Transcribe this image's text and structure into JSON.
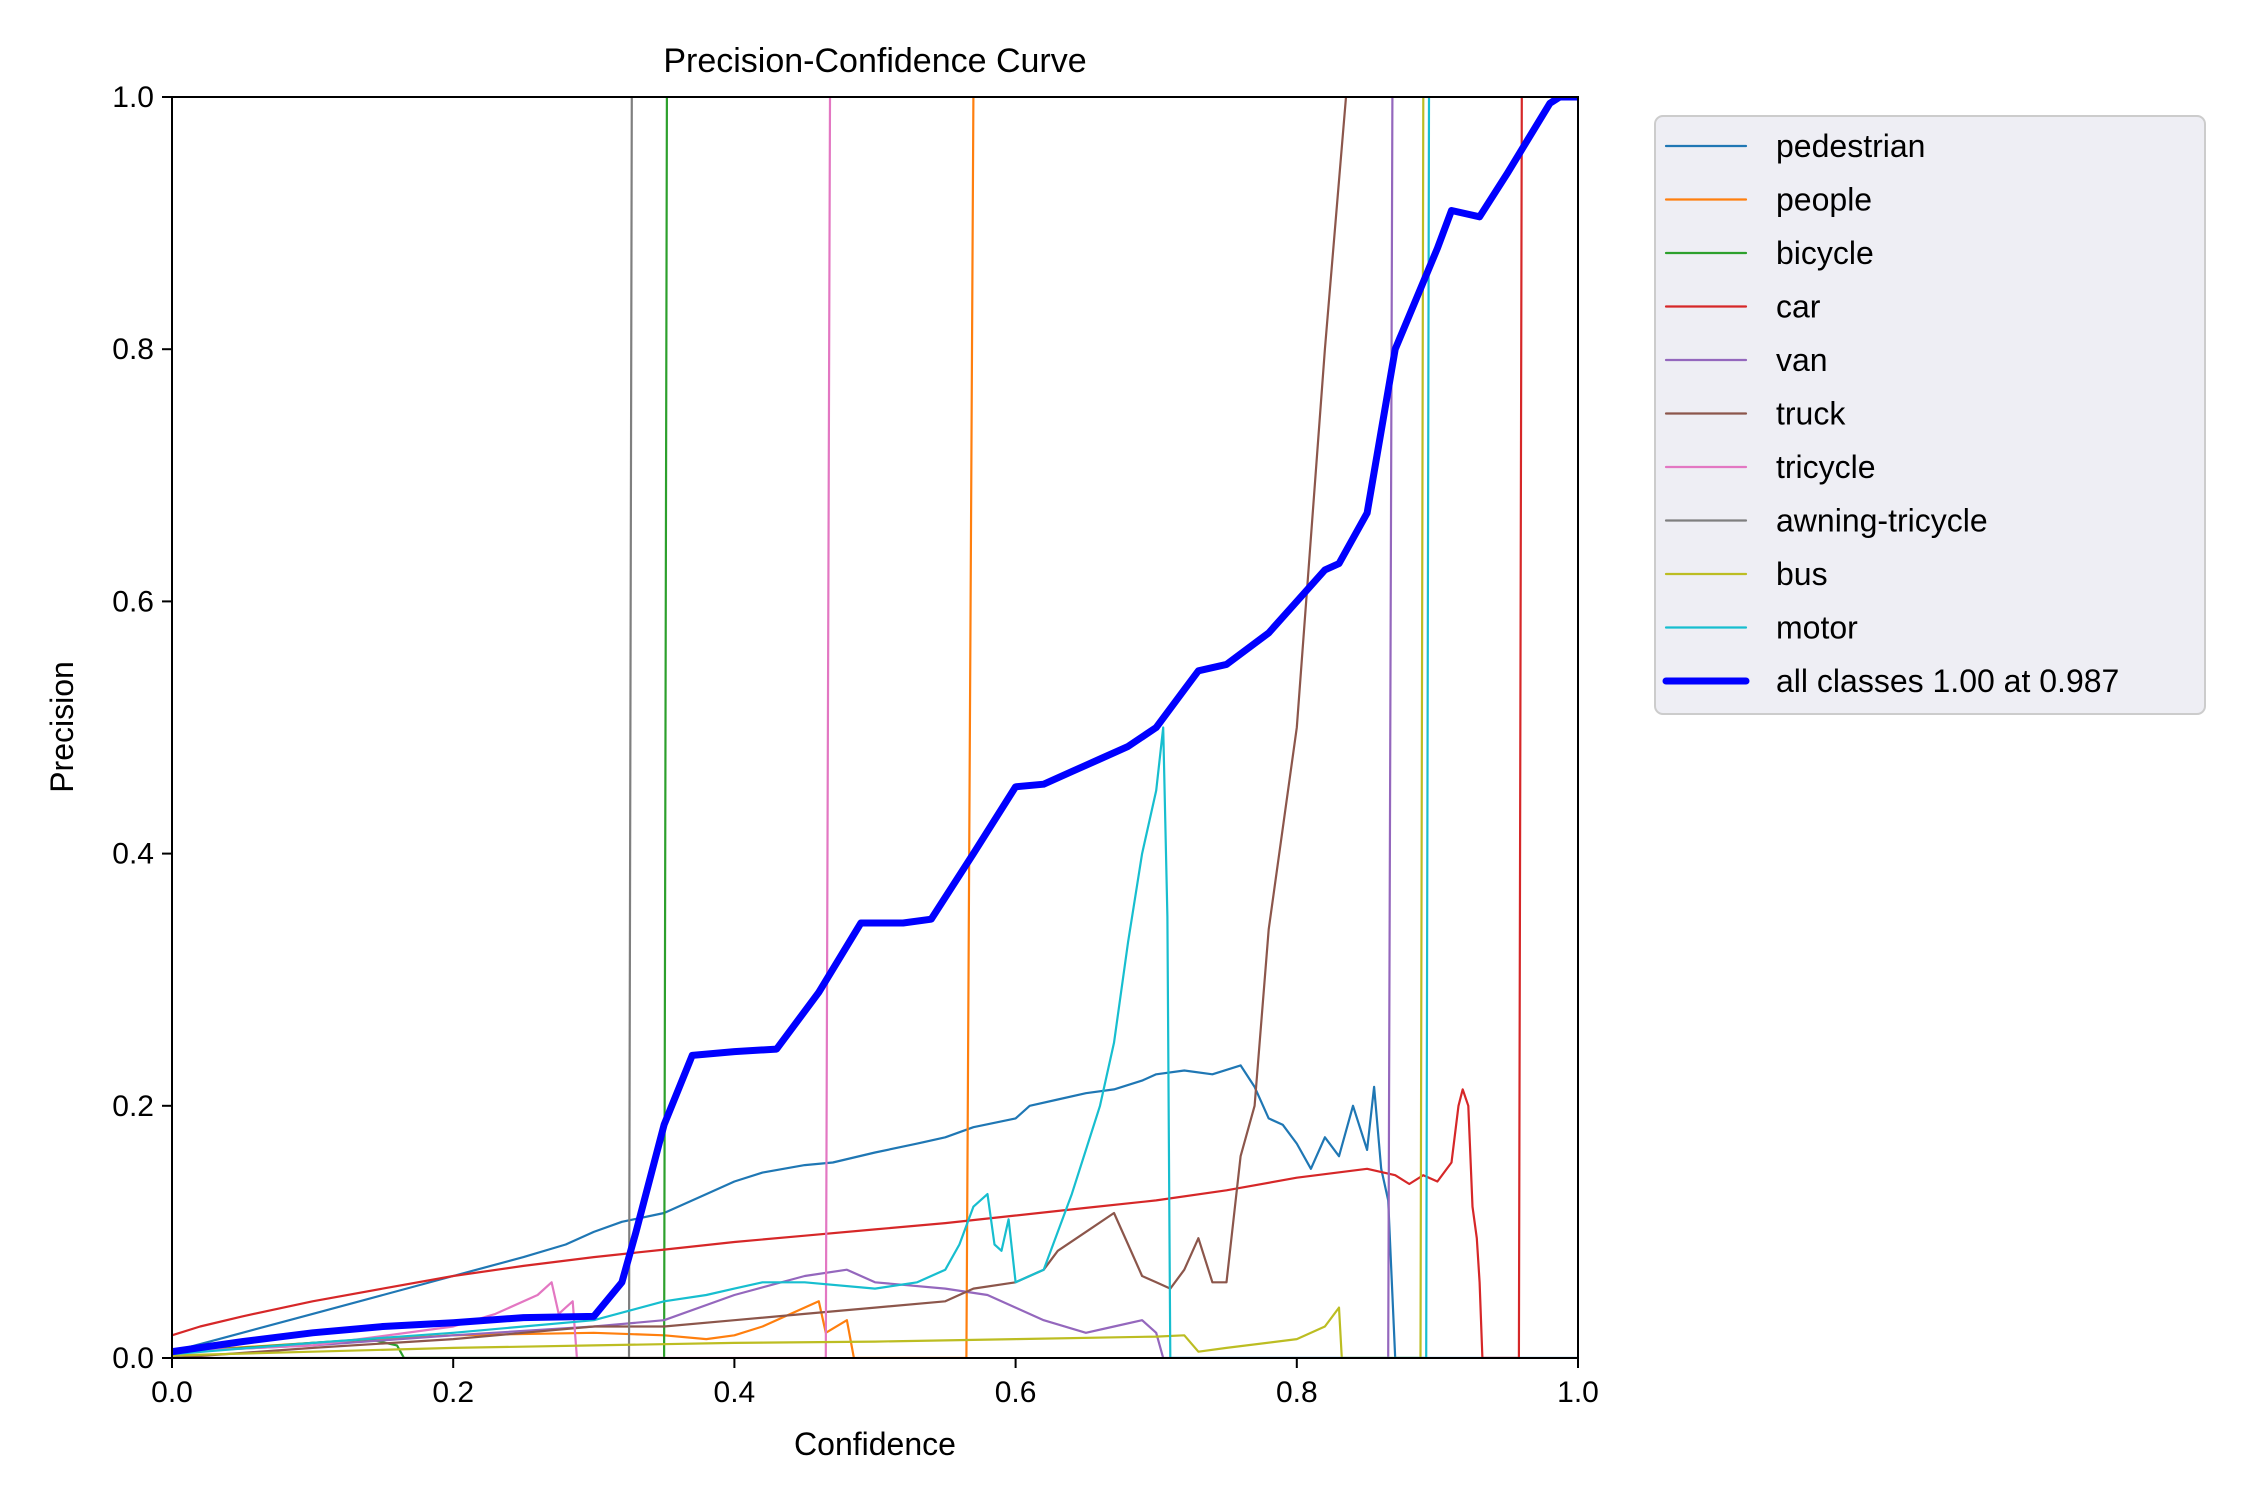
{
  "chart_data": {
    "type": "line",
    "title": "Precision-Confidence Curve",
    "xlabel": "Confidence",
    "ylabel": "Precision",
    "xlim": [
      0,
      1
    ],
    "ylim": [
      0,
      1
    ],
    "x_ticks": [
      "0.0",
      "0.2",
      "0.4",
      "0.6",
      "0.8",
      "1.0"
    ],
    "y_ticks": [
      "0.0",
      "0.2",
      "0.4",
      "0.6",
      "0.8",
      "1.0"
    ],
    "grid": false,
    "legend_position": "outside-right",
    "series": [
      {
        "name": "pedestrian",
        "color": "#1f77b4",
        "linewidth": 2.2,
        "points": [
          [
            0,
            0.005
          ],
          [
            0.05,
            0.02
          ],
          [
            0.1,
            0.035
          ],
          [
            0.15,
            0.05
          ],
          [
            0.2,
            0.065
          ],
          [
            0.25,
            0.08
          ],
          [
            0.28,
            0.09
          ],
          [
            0.3,
            0.1
          ],
          [
            0.32,
            0.108
          ],
          [
            0.35,
            0.115
          ],
          [
            0.38,
            0.13
          ],
          [
            0.4,
            0.14
          ],
          [
            0.42,
            0.147
          ],
          [
            0.45,
            0.153
          ],
          [
            0.47,
            0.155
          ],
          [
            0.5,
            0.163
          ],
          [
            0.53,
            0.17
          ],
          [
            0.55,
            0.175
          ],
          [
            0.57,
            0.183
          ],
          [
            0.6,
            0.19
          ],
          [
            0.61,
            0.2
          ],
          [
            0.63,
            0.205
          ],
          [
            0.65,
            0.21
          ],
          [
            0.67,
            0.213
          ],
          [
            0.69,
            0.22
          ],
          [
            0.7,
            0.225
          ],
          [
            0.72,
            0.228
          ],
          [
            0.74,
            0.225
          ],
          [
            0.76,
            0.232
          ],
          [
            0.77,
            0.215
          ],
          [
            0.78,
            0.19
          ],
          [
            0.79,
            0.185
          ],
          [
            0.8,
            0.17
          ],
          [
            0.81,
            0.15
          ],
          [
            0.82,
            0.175
          ],
          [
            0.83,
            0.16
          ],
          [
            0.84,
            0.2
          ],
          [
            0.85,
            0.165
          ],
          [
            0.855,
            0.215
          ],
          [
            0.86,
            0.15
          ],
          [
            0.865,
            0.125
          ],
          [
            0.87,
            0.0
          ],
          [
            1.0,
            0.0
          ]
        ]
      },
      {
        "name": "people",
        "color": "#ff7f0e",
        "linewidth": 2.2,
        "points": [
          [
            0,
            0.005
          ],
          [
            0.1,
            0.012
          ],
          [
            0.2,
            0.018
          ],
          [
            0.3,
            0.02
          ],
          [
            0.35,
            0.018
          ],
          [
            0.38,
            0.015
          ],
          [
            0.4,
            0.018
          ],
          [
            0.42,
            0.025
          ],
          [
            0.44,
            0.035
          ],
          [
            0.46,
            0.045
          ],
          [
            0.465,
            0.02
          ],
          [
            0.48,
            0.03
          ],
          [
            0.485,
            0.0
          ],
          [
            0.565,
            0.0
          ],
          [
            0.57,
            1.0
          ]
        ]
      },
      {
        "name": "bicycle",
        "color": "#2ca02c",
        "linewidth": 2.2,
        "points": [
          [
            0,
            0.005
          ],
          [
            0.05,
            0.008
          ],
          [
            0.1,
            0.012
          ],
          [
            0.14,
            0.015
          ],
          [
            0.16,
            0.01
          ],
          [
            0.165,
            0.0
          ],
          [
            0.35,
            0.0
          ],
          [
            0.352,
            1.0
          ]
        ]
      },
      {
        "name": "car",
        "color": "#d62728",
        "linewidth": 2.2,
        "points": [
          [
            0,
            0.018
          ],
          [
            0.02,
            0.025
          ],
          [
            0.05,
            0.033
          ],
          [
            0.1,
            0.045
          ],
          [
            0.15,
            0.055
          ],
          [
            0.2,
            0.065
          ],
          [
            0.25,
            0.073
          ],
          [
            0.3,
            0.08
          ],
          [
            0.35,
            0.086
          ],
          [
            0.4,
            0.092
          ],
          [
            0.45,
            0.097
          ],
          [
            0.5,
            0.102
          ],
          [
            0.55,
            0.107
          ],
          [
            0.6,
            0.113
          ],
          [
            0.65,
            0.119
          ],
          [
            0.7,
            0.125
          ],
          [
            0.75,
            0.133
          ],
          [
            0.8,
            0.143
          ],
          [
            0.85,
            0.15
          ],
          [
            0.87,
            0.145
          ],
          [
            0.88,
            0.138
          ],
          [
            0.89,
            0.145
          ],
          [
            0.9,
            0.14
          ],
          [
            0.91,
            0.155
          ],
          [
            0.915,
            0.2
          ],
          [
            0.918,
            0.213
          ],
          [
            0.922,
            0.2
          ],
          [
            0.925,
            0.12
          ],
          [
            0.928,
            0.095
          ],
          [
            0.93,
            0.06
          ],
          [
            0.932,
            0.0
          ],
          [
            0.958,
            0.0
          ],
          [
            0.96,
            1.0
          ]
        ]
      },
      {
        "name": "van",
        "color": "#9467bd",
        "linewidth": 2.2,
        "points": [
          [
            0,
            0.005
          ],
          [
            0.1,
            0.01
          ],
          [
            0.2,
            0.018
          ],
          [
            0.3,
            0.025
          ],
          [
            0.35,
            0.03
          ],
          [
            0.4,
            0.05
          ],
          [
            0.45,
            0.065
          ],
          [
            0.48,
            0.07
          ],
          [
            0.5,
            0.06
          ],
          [
            0.55,
            0.055
          ],
          [
            0.58,
            0.05
          ],
          [
            0.6,
            0.04
          ],
          [
            0.62,
            0.03
          ],
          [
            0.65,
            0.02
          ],
          [
            0.67,
            0.025
          ],
          [
            0.69,
            0.03
          ],
          [
            0.7,
            0.02
          ],
          [
            0.705,
            0.0
          ],
          [
            0.865,
            0.0
          ],
          [
            0.868,
            1.0
          ]
        ]
      },
      {
        "name": "truck",
        "color": "#8c564b",
        "linewidth": 2.2,
        "points": [
          [
            0,
            0.0
          ],
          [
            0.1,
            0.008
          ],
          [
            0.2,
            0.015
          ],
          [
            0.3,
            0.025
          ],
          [
            0.35,
            0.025
          ],
          [
            0.4,
            0.03
          ],
          [
            0.45,
            0.035
          ],
          [
            0.5,
            0.04
          ],
          [
            0.55,
            0.045
          ],
          [
            0.57,
            0.055
          ],
          [
            0.6,
            0.06
          ],
          [
            0.62,
            0.07
          ],
          [
            0.63,
            0.085
          ],
          [
            0.65,
            0.1
          ],
          [
            0.67,
            0.115
          ],
          [
            0.68,
            0.09
          ],
          [
            0.69,
            0.065
          ],
          [
            0.7,
            0.06
          ],
          [
            0.71,
            0.055
          ],
          [
            0.72,
            0.07
          ],
          [
            0.73,
            0.095
          ],
          [
            0.74,
            0.06
          ],
          [
            0.75,
            0.06
          ],
          [
            0.76,
            0.16
          ],
          [
            0.77,
            0.2
          ],
          [
            0.78,
            0.34
          ],
          [
            0.8,
            0.5
          ],
          [
            0.82,
            0.8
          ],
          [
            0.835,
            1.0
          ]
        ]
      },
      {
        "name": "tricycle",
        "color": "#e377c2",
        "linewidth": 2.2,
        "points": [
          [
            0,
            0.005
          ],
          [
            0.1,
            0.01
          ],
          [
            0.2,
            0.025
          ],
          [
            0.23,
            0.035
          ],
          [
            0.26,
            0.05
          ],
          [
            0.27,
            0.06
          ],
          [
            0.275,
            0.035
          ],
          [
            0.28,
            0.04
          ],
          [
            0.285,
            0.045
          ],
          [
            0.288,
            0.0
          ],
          [
            0.465,
            0.0
          ],
          [
            0.468,
            1.0
          ]
        ]
      },
      {
        "name": "awning-tricycle",
        "color": "#7f7f7f",
        "linewidth": 2.2,
        "points": [
          [
            0,
            0.0
          ],
          [
            0.325,
            0.0
          ],
          [
            0.327,
            1.0
          ]
        ]
      },
      {
        "name": "bus",
        "color": "#bcbd22",
        "linewidth": 2.2,
        "points": [
          [
            0,
            0.002
          ],
          [
            0.1,
            0.005
          ],
          [
            0.2,
            0.008
          ],
          [
            0.3,
            0.01
          ],
          [
            0.4,
            0.012
          ],
          [
            0.5,
            0.013
          ],
          [
            0.6,
            0.015
          ],
          [
            0.7,
            0.017
          ],
          [
            0.72,
            0.018
          ],
          [
            0.73,
            0.005
          ],
          [
            0.75,
            0.008
          ],
          [
            0.8,
            0.015
          ],
          [
            0.82,
            0.025
          ],
          [
            0.83,
            0.04
          ],
          [
            0.832,
            0.0
          ],
          [
            0.888,
            0.0
          ],
          [
            0.89,
            1.0
          ]
        ]
      },
      {
        "name": "motor",
        "color": "#17becf",
        "linewidth": 2.2,
        "points": [
          [
            0,
            0.003
          ],
          [
            0.1,
            0.012
          ],
          [
            0.2,
            0.02
          ],
          [
            0.25,
            0.025
          ],
          [
            0.3,
            0.03
          ],
          [
            0.35,
            0.045
          ],
          [
            0.38,
            0.05
          ],
          [
            0.4,
            0.055
          ],
          [
            0.42,
            0.06
          ],
          [
            0.45,
            0.06
          ],
          [
            0.5,
            0.055
          ],
          [
            0.53,
            0.06
          ],
          [
            0.55,
            0.07
          ],
          [
            0.56,
            0.09
          ],
          [
            0.57,
            0.12
          ],
          [
            0.58,
            0.13
          ],
          [
            0.585,
            0.09
          ],
          [
            0.59,
            0.085
          ],
          [
            0.595,
            0.11
          ],
          [
            0.6,
            0.06
          ],
          [
            0.62,
            0.07
          ],
          [
            0.64,
            0.13
          ],
          [
            0.66,
            0.2
          ],
          [
            0.67,
            0.25
          ],
          [
            0.68,
            0.33
          ],
          [
            0.69,
            0.4
          ],
          [
            0.7,
            0.45
          ],
          [
            0.705,
            0.5
          ],
          [
            0.708,
            0.35
          ],
          [
            0.71,
            0.0
          ],
          [
            0.892,
            0.0
          ],
          [
            0.894,
            1.0
          ]
        ]
      },
      {
        "name": "all classes 1.00 at 0.987",
        "color": "#0000ff",
        "linewidth": 7,
        "points": [
          [
            0,
            0.005
          ],
          [
            0.05,
            0.013
          ],
          [
            0.1,
            0.02
          ],
          [
            0.15,
            0.025
          ],
          [
            0.2,
            0.028
          ],
          [
            0.25,
            0.032
          ],
          [
            0.3,
            0.033
          ],
          [
            0.32,
            0.06
          ],
          [
            0.33,
            0.1
          ],
          [
            0.35,
            0.185
          ],
          [
            0.37,
            0.24
          ],
          [
            0.4,
            0.243
          ],
          [
            0.43,
            0.245
          ],
          [
            0.46,
            0.29
          ],
          [
            0.49,
            0.345
          ],
          [
            0.52,
            0.345
          ],
          [
            0.54,
            0.348
          ],
          [
            0.57,
            0.4
          ],
          [
            0.6,
            0.453
          ],
          [
            0.62,
            0.455
          ],
          [
            0.64,
            0.465
          ],
          [
            0.66,
            0.475
          ],
          [
            0.68,
            0.485
          ],
          [
            0.7,
            0.5
          ],
          [
            0.72,
            0.53
          ],
          [
            0.73,
            0.545
          ],
          [
            0.75,
            0.55
          ],
          [
            0.78,
            0.575
          ],
          [
            0.8,
            0.6
          ],
          [
            0.82,
            0.625
          ],
          [
            0.83,
            0.63
          ],
          [
            0.85,
            0.67
          ],
          [
            0.87,
            0.8
          ],
          [
            0.9,
            0.88
          ],
          [
            0.91,
            0.91
          ],
          [
            0.93,
            0.905
          ],
          [
            0.95,
            0.94
          ],
          [
            0.98,
            0.995
          ],
          [
            0.987,
            1.0
          ],
          [
            1.0,
            1.0
          ]
        ]
      }
    ]
  }
}
